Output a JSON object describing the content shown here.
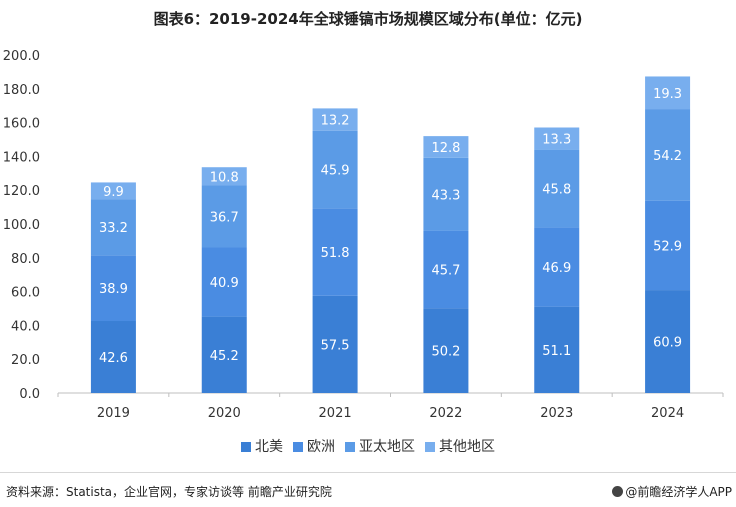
{
  "title": "图表6：2019-2024年全球锤镐市场规模区域分布(单位：亿元)",
  "footer": {
    "source": "资料来源：Statista，企业官网，专家访谈等 前瞻产业研究院",
    "brand": "@前瞻经济学人APP"
  },
  "colors": {
    "north_america": "#3a7fd5",
    "europe": "#4a8ce2",
    "asia_pacific": "#5b9be6",
    "other": "#78aeee",
    "axis": "#bfbfbf",
    "text": "#333333"
  },
  "chart_data": {
    "type": "bar",
    "stacked": true,
    "categories": [
      "2019",
      "2020",
      "2021",
      "2022",
      "2023",
      "2024"
    ],
    "series": [
      {
        "name": "北美",
        "values": [
          42.6,
          45.2,
          57.5,
          50.2,
          51.1,
          60.9
        ]
      },
      {
        "name": "欧洲",
        "values": [
          38.9,
          40.9,
          51.8,
          45.7,
          46.9,
          52.9
        ]
      },
      {
        "name": "亚太地区",
        "values": [
          33.2,
          36.7,
          45.9,
          43.3,
          45.8,
          54.2
        ]
      },
      {
        "name": "其他地区",
        "values": [
          9.9,
          10.8,
          13.2,
          12.8,
          13.3,
          19.3
        ]
      }
    ],
    "yticks": [
      "0.0",
      "20.0",
      "40.0",
      "60.0",
      "80.0",
      "100.0",
      "120.0",
      "140.0",
      "160.0",
      "180.0",
      "200.0"
    ],
    "ylim": [
      0,
      200
    ],
    "grid": false,
    "legend_position": "bottom"
  }
}
